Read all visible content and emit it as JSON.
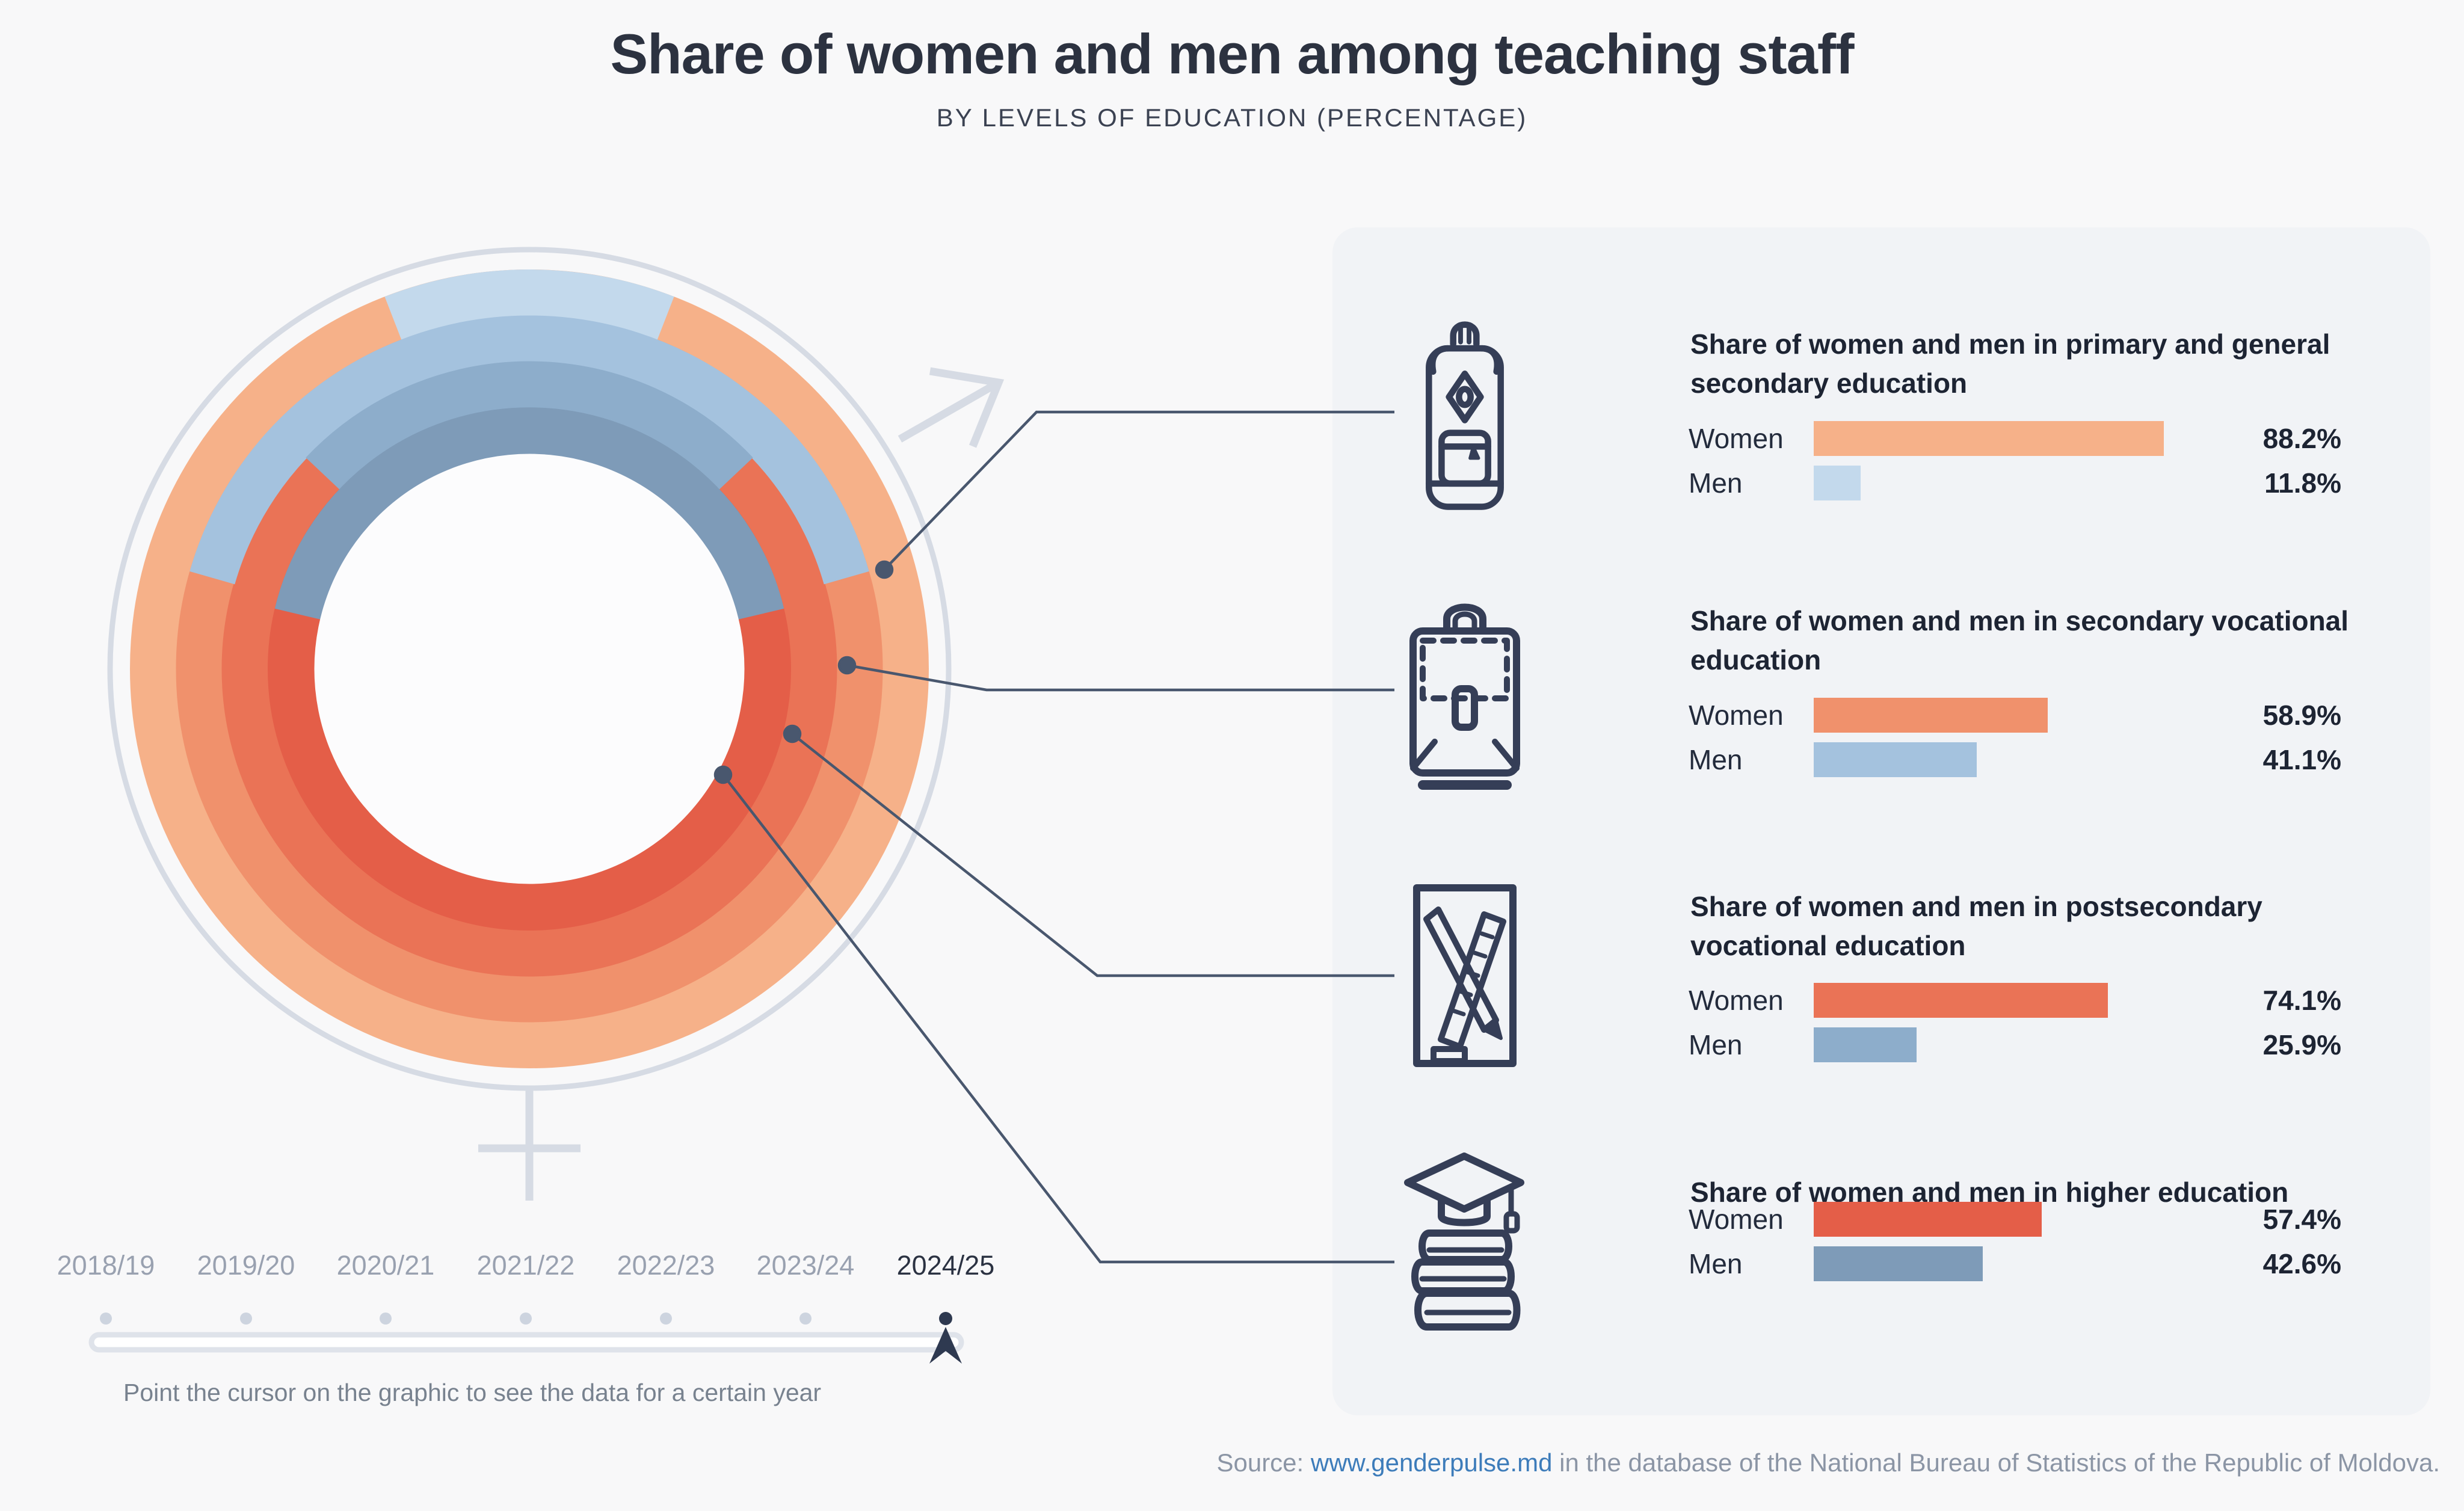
{
  "page": {
    "title": "Share of women and men among teaching staff",
    "subtitle": "BY LEVELS OF EDUCATION (PERCENTAGE)"
  },
  "colors": {
    "women": [
      "#f6b189",
      "#f0916c",
      "#ea7356",
      "#e45e48"
    ],
    "men": [
      "#c3d9ec",
      "#a4c2de",
      "#8dadcb",
      "#7e9bb8"
    ],
    "callout_line": "#49576e",
    "icon_stroke": "#353e57",
    "symbol_gray": "#d6dbe4",
    "panel_bg": "#f1f3f6",
    "active_year": "#2b3242",
    "inactive_year": "#99a1b0",
    "link_blue": "#3d7cba"
  },
  "chart_data": {
    "type": "donut",
    "title": "Share of women and men among teaching staff by levels of education",
    "unit": "percent",
    "year_shown": "2024/25",
    "rings_outer_to_inner": [
      "Primary and general secondary education",
      "Secondary vocational education",
      "Postsecondary vocational education",
      "Higher education"
    ],
    "levels": [
      {
        "level": "Primary and general secondary education",
        "women": 88.2,
        "men": 11.8
      },
      {
        "level": "Secondary vocational education",
        "women": 58.9,
        "men": 41.1
      },
      {
        "level": "Postsecondary vocational education",
        "women": 74.1,
        "men": 25.9
      },
      {
        "level": "Higher education",
        "women": 57.4,
        "men": 42.6
      }
    ],
    "legend": {
      "women_color_family": "orange-red",
      "men_color_family": "blue",
      "men_arcs_centered_at": "top"
    }
  },
  "sections": [
    {
      "icon": "backpack-icon",
      "title": "Share of women and men in primary and general secondary education",
      "women_label": "Women",
      "men_label": "Men",
      "women": 88.2,
      "men": 11.8,
      "women_value": "88.2%",
      "men_value": "11.8%"
    },
    {
      "icon": "briefcase-icon",
      "title": "Share of women and men in secondary vocational education",
      "women_label": "Women",
      "men_label": "Men",
      "women": 58.9,
      "men": 41.1,
      "women_value": "58.9%",
      "men_value": "41.1%"
    },
    {
      "icon": "pencil-ruler-icon",
      "title": "Share of women and men in postsecondary vocational education",
      "women_label": "Women",
      "men_label": "Men",
      "women": 74.1,
      "men": 25.9,
      "women_value": "74.1%",
      "men_value": "25.9%"
    },
    {
      "icon": "graduation-books-icon",
      "title": "Share of women and men in higher education",
      "women_label": "Women",
      "men_label": "Men",
      "women": 57.4,
      "men": 42.6,
      "women_value": "57.4%",
      "men_value": "42.6%"
    }
  ],
  "timeline": {
    "years": [
      "2018/19",
      "2019/20",
      "2020/21",
      "2021/22",
      "2022/23",
      "2023/24",
      "2024/25"
    ],
    "active_year": "2024/25",
    "hint": "Point the cursor on the graphic to see the data for a certain year"
  },
  "source": {
    "prefix": "Source: ",
    "link_text": "www.genderpulse.md",
    "suffix": " in the database of the National Bureau of Statistics of the Republic of Moldova."
  }
}
